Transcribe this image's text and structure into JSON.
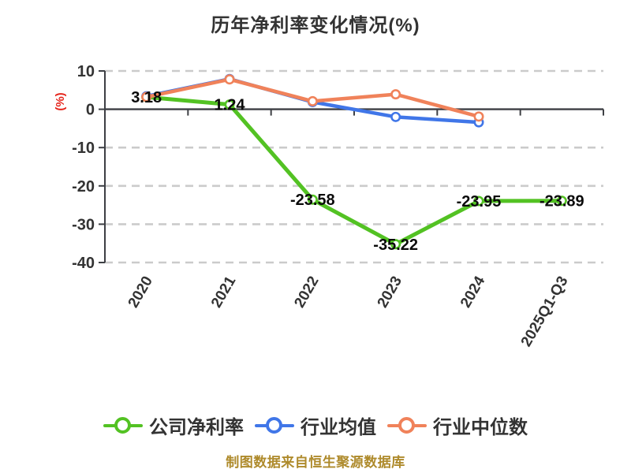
{
  "title": "历年净利率变化情况(%)",
  "y_axis_unit": "(%)",
  "footer": "制图数据来自恒生聚源数据库",
  "colors": {
    "background": "#ffffff",
    "title_text": "#333333",
    "axis": "#3d3f44",
    "grid": "#cbcbcb",
    "tick_text": "#333333",
    "value_label_text": "#0a0a0a",
    "unit_label": "#e5251c",
    "footer_text": "#ae8a2b",
    "series_company": "#53c223",
    "series_industry_avg": "#4076e8",
    "series_industry_median": "#f0825a"
  },
  "chart_data": {
    "type": "line",
    "title": "历年净利率变化情况(%)",
    "ylabel": "(%)",
    "categories": [
      "2020",
      "2021",
      "2022",
      "2023",
      "2024",
      "2025Q1-Q3"
    ],
    "series": [
      {
        "name": "公司净利率",
        "color": "#53c223",
        "values": [
          3.18,
          1.24,
          -23.58,
          -35.22,
          -23.95,
          -23.89
        ],
        "labels": [
          "3.18",
          "1.24",
          "-23.58",
          "-35.22",
          "-23.95",
          "-23.89"
        ]
      },
      {
        "name": "行业均值",
        "color": "#4076e8",
        "values": [
          3.4,
          7.9,
          1.9,
          -2.0,
          -3.4,
          null
        ],
        "labels": []
      },
      {
        "name": "行业中位数",
        "color": "#f0825a",
        "values": [
          3.2,
          7.8,
          2.1,
          3.9,
          -1.9,
          null
        ],
        "labels": []
      }
    ],
    "ylim": [
      -40,
      10
    ],
    "yticks": [
      10,
      0,
      -10,
      -20,
      -30,
      -40
    ],
    "x_label_rotation": -60,
    "grid": "horizontal-dashed",
    "legend_position": "bottom"
  }
}
